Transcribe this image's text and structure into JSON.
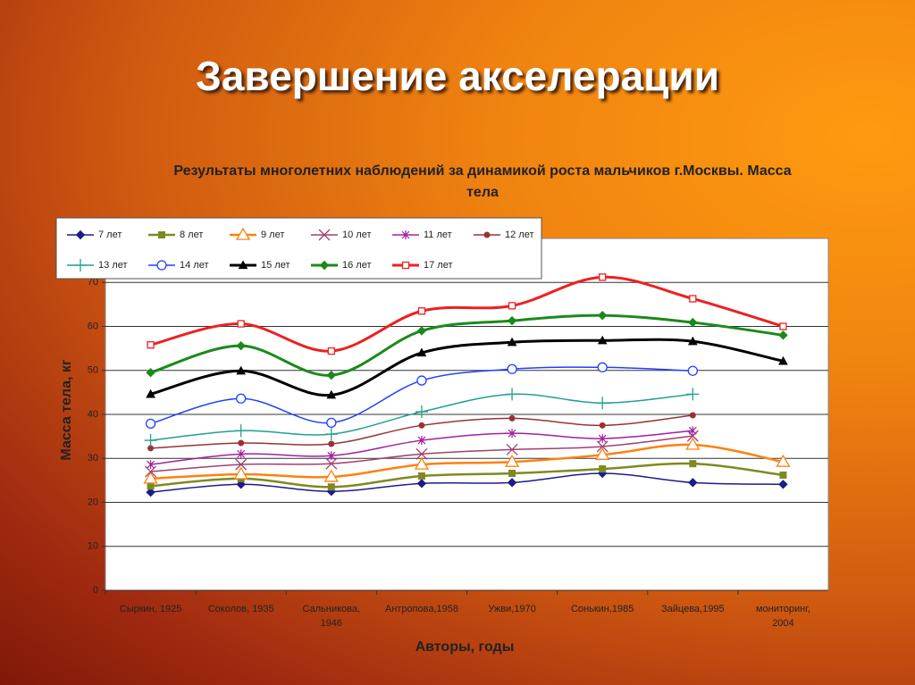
{
  "title": "Завершение акселерации",
  "chart_data": {
    "type": "line",
    "title": "Результаты  многолетних наблюдений за динамикой роста мальчиков г.Москвы. Масса тела",
    "x_label": "Авторы, годы",
    "y_label": "Масса тела, кг",
    "categories": [
      "Сыркин, 1925",
      "Соколов, 1935",
      "Сальникова, 1946",
      "Антропова,1958",
      "Ужви,1970",
      "Сонькин,1985",
      "Зайцева,1995",
      "мониторинг, 2004"
    ],
    "ylim": [
      0,
      80
    ],
    "yticks": [
      0,
      10,
      20,
      30,
      40,
      50,
      60,
      70
    ],
    "grid": true,
    "legend": "top-left",
    "series": [
      {
        "name": "7 лет",
        "color": "#1c1c8c",
        "marker": "diamond",
        "values": [
          22.3,
          24.1,
          22.5,
          24.3,
          24.5,
          26.6,
          24.5,
          24.1
        ]
      },
      {
        "name": "8 лет",
        "color": "#7e8a20",
        "marker": "square",
        "values": [
          23.7,
          25.4,
          23.5,
          26,
          26.6,
          27.6,
          28.8,
          26.2
        ]
      },
      {
        "name": "9 лет",
        "color": "#ff8010",
        "marker": "triangle-open",
        "values": [
          25.4,
          26.4,
          25.8,
          28.6,
          29.2,
          30.8,
          33.1,
          29.2
        ]
      },
      {
        "name": "10 лет",
        "color": "#a04070",
        "marker": "x",
        "values": [
          27,
          28.6,
          28.8,
          31,
          32,
          32.7,
          35.1,
          null
        ]
      },
      {
        "name": "11 лет",
        "color": "#a020a0",
        "marker": "star",
        "values": [
          28.6,
          31,
          30.6,
          34.1,
          35.7,
          34.5,
          36.3,
          null
        ]
      },
      {
        "name": "12 лет",
        "color": "#993333",
        "marker": "circle",
        "values": [
          32.3,
          33.5,
          33.3,
          37.5,
          39.1,
          37.5,
          39.8,
          null
        ]
      },
      {
        "name": "13 лет",
        "color": "#20a090",
        "marker": "plus",
        "values": [
          34.1,
          36.3,
          35.5,
          40.6,
          44.6,
          42.6,
          44.6,
          null
        ]
      },
      {
        "name": "14 лет",
        "color": "#2040ff",
        "marker": "circle-open",
        "values": [
          37.9,
          43.6,
          38.1,
          47.7,
          50.3,
          50.7,
          49.9,
          null
        ]
      },
      {
        "name": "15 лет",
        "color": "#000000",
        "marker": "triangle",
        "values": [
          44.6,
          49.9,
          44.4,
          54,
          56.4,
          56.8,
          56.6,
          52.1
        ]
      },
      {
        "name": "16 лет",
        "color": "#1a8a1a",
        "marker": "diamond",
        "values": [
          49.5,
          55.6,
          48.9,
          59,
          61.3,
          62.5,
          60.9,
          58
        ]
      },
      {
        "name": "17 лет",
        "color": "#ee2020",
        "marker": "square-open",
        "values": [
          55.8,
          60.6,
          54.4,
          63.5,
          64.7,
          71.2,
          66.3,
          60
        ]
      }
    ]
  }
}
